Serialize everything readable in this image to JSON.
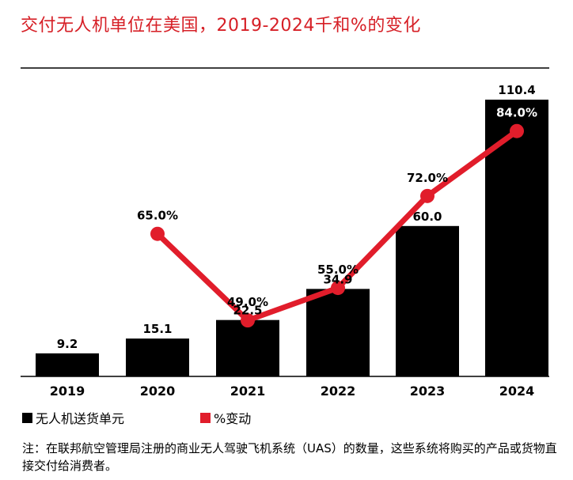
{
  "title": "交付无人机单位在美国，2019-2024千和%的变化",
  "colors": {
    "title": "#d61f26",
    "bar": "#000000",
    "line": "#e11d2b"
  },
  "legend": {
    "bars_label": "无人机送货单元",
    "line_label": "%变动"
  },
  "note": "注：在联邦航空管理局注册的商业无人驾驶飞机系统（UAS）的数量，这些系统将购买的产品或货物直接交付给消费者。",
  "chart_data": {
    "type": "bar",
    "categories": [
      "2019",
      "2020",
      "2021",
      "2022",
      "2023",
      "2024"
    ],
    "series": [
      {
        "name": "无人机送货单元",
        "type": "bar",
        "values": [
          9.2,
          15.1,
          22.5,
          34.9,
          60.0,
          110.4
        ],
        "labels": [
          "9.2",
          "15.1",
          "22.5",
          "34.9",
          "60.0",
          "110.4"
        ]
      },
      {
        "name": "%变动",
        "type": "line",
        "values": [
          null,
          65.0,
          49.0,
          55.0,
          72.0,
          84.0
        ],
        "labels": [
          "",
          "65.0%",
          "49.0%",
          "55.0%",
          "72.0%",
          "84.0%"
        ]
      }
    ],
    "title": "交付无人机单位在美国，2019-2024千和%的变化",
    "grid": false,
    "legend_position": "bottom-left"
  }
}
